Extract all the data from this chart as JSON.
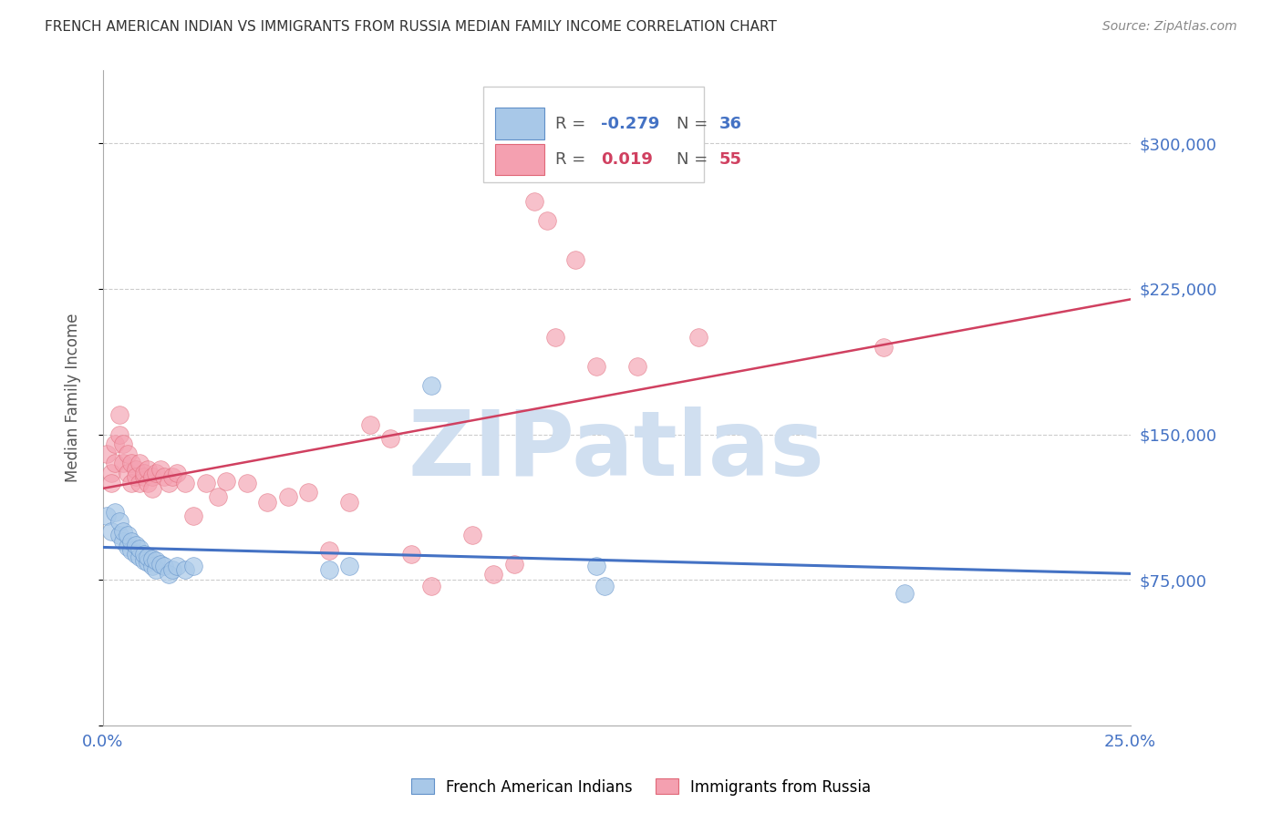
{
  "title": "FRENCH AMERICAN INDIAN VS IMMIGRANTS FROM RUSSIA MEDIAN FAMILY INCOME CORRELATION CHART",
  "source": "Source: ZipAtlas.com",
  "ylabel": "Median Family Income",
  "yticks": [
    0,
    75000,
    150000,
    225000,
    300000
  ],
  "ytick_labels": [
    "",
    "$75,000",
    "$150,000",
    "$225,000",
    "$300,000"
  ],
  "xmin": 0.0,
  "xmax": 0.25,
  "ymin": 0,
  "ymax": 337500,
  "blue_label": "French American Indians",
  "pink_label": "Immigrants from Russia",
  "blue_color": "#A8C8E8",
  "pink_color": "#F4A0B0",
  "blue_edge_color": "#6090C8",
  "pink_edge_color": "#E06878",
  "blue_line_color": "#4472C4",
  "pink_line_color": "#D04060",
  "watermark": "ZIPatlas",
  "watermark_color": "#D0DFF0",
  "title_color": "#333333",
  "axis_label_color": "#4472C4",
  "legend_R_color_blue": "#4472C4",
  "legend_R_color_pink": "#D04060",
  "blue_x": [
    0.001,
    0.002,
    0.003,
    0.004,
    0.004,
    0.005,
    0.005,
    0.006,
    0.006,
    0.007,
    0.007,
    0.008,
    0.008,
    0.009,
    0.009,
    0.01,
    0.01,
    0.011,
    0.011,
    0.012,
    0.012,
    0.013,
    0.013,
    0.014,
    0.015,
    0.016,
    0.017,
    0.018,
    0.02,
    0.022,
    0.055,
    0.06,
    0.08,
    0.12,
    0.122,
    0.195
  ],
  "blue_y": [
    108000,
    100000,
    110000,
    98000,
    105000,
    95000,
    100000,
    92000,
    98000,
    90000,
    95000,
    88000,
    93000,
    87000,
    91000,
    85000,
    88000,
    84000,
    87000,
    82000,
    86000,
    80000,
    85000,
    83000,
    82000,
    78000,
    80000,
    82000,
    80000,
    82000,
    80000,
    82000,
    175000,
    82000,
    72000,
    68000
  ],
  "pink_x": [
    0.001,
    0.002,
    0.002,
    0.003,
    0.003,
    0.004,
    0.004,
    0.005,
    0.005,
    0.006,
    0.006,
    0.007,
    0.007,
    0.008,
    0.008,
    0.009,
    0.009,
    0.01,
    0.01,
    0.011,
    0.011,
    0.012,
    0.012,
    0.013,
    0.014,
    0.015,
    0.016,
    0.017,
    0.018,
    0.02,
    0.022,
    0.025,
    0.028,
    0.03,
    0.035,
    0.04,
    0.045,
    0.05,
    0.055,
    0.06,
    0.065,
    0.07,
    0.075,
    0.08,
    0.09,
    0.095,
    0.1,
    0.105,
    0.108,
    0.11,
    0.115,
    0.12,
    0.13,
    0.145,
    0.19
  ],
  "pink_y": [
    140000,
    130000,
    125000,
    145000,
    135000,
    160000,
    150000,
    145000,
    135000,
    130000,
    140000,
    135000,
    125000,
    132000,
    128000,
    135000,
    125000,
    128000,
    130000,
    125000,
    132000,
    128000,
    122000,
    130000,
    132000,
    128000,
    125000,
    128000,
    130000,
    125000,
    108000,
    125000,
    118000,
    126000,
    125000,
    115000,
    118000,
    120000,
    90000,
    115000,
    155000,
    148000,
    88000,
    72000,
    98000,
    78000,
    83000,
    270000,
    260000,
    200000,
    240000,
    185000,
    185000,
    200000,
    195000
  ]
}
